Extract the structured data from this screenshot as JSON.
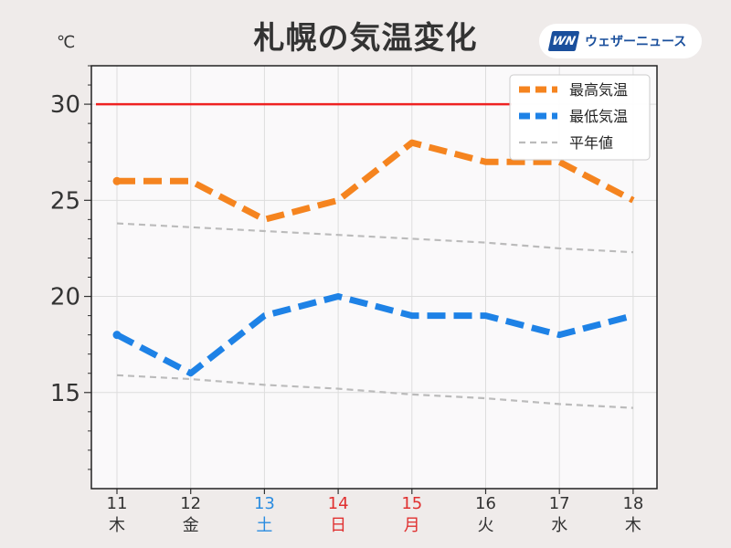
{
  "header": {
    "title": "札幌の気温変化",
    "brand": "ウェザーニュース",
    "brand_mark": "WN"
  },
  "chart_data": {
    "type": "line",
    "title": "札幌の気温変化",
    "ylabel": "℃",
    "xlabel": "",
    "ylim": [
      10,
      32
    ],
    "yticks": [
      15,
      20,
      25,
      30
    ],
    "reference_line": {
      "value": 30,
      "color": "#ee2222"
    },
    "x": [
      {
        "day": "11",
        "weekday": "木",
        "color": "#333333"
      },
      {
        "day": "12",
        "weekday": "金",
        "color": "#333333"
      },
      {
        "day": "13",
        "weekday": "土",
        "color": "#2b8ce0"
      },
      {
        "day": "14",
        "weekday": "日",
        "color": "#e03030"
      },
      {
        "day": "15",
        "weekday": "月",
        "color": "#e03030"
      },
      {
        "day": "16",
        "weekday": "火",
        "color": "#333333"
      },
      {
        "day": "17",
        "weekday": "水",
        "color": "#333333"
      },
      {
        "day": "18",
        "weekday": "木",
        "color": "#333333"
      }
    ],
    "series": [
      {
        "name": "最高気温",
        "color": "#f5841f",
        "style": "dashed-thick",
        "values": [
          26,
          26,
          24,
          25,
          28,
          27,
          27,
          25
        ]
      },
      {
        "name": "最低気温",
        "color": "#1e82e6",
        "style": "dashed-thick",
        "values": [
          18,
          16,
          19,
          20,
          19,
          19,
          18,
          19
        ]
      },
      {
        "name": "平年値",
        "color": "#bbbbbb",
        "style": "dashed-thin",
        "values": [
          23.8,
          23.6,
          23.4,
          23.2,
          23.0,
          22.8,
          22.5,
          22.3
        ]
      },
      {
        "name": "",
        "color": "#bbbbbb",
        "style": "dashed-thin",
        "legend": false,
        "values": [
          15.9,
          15.7,
          15.4,
          15.2,
          14.9,
          14.7,
          14.4,
          14.2
        ]
      }
    ],
    "grid": true,
    "legend_position": "top-right"
  }
}
